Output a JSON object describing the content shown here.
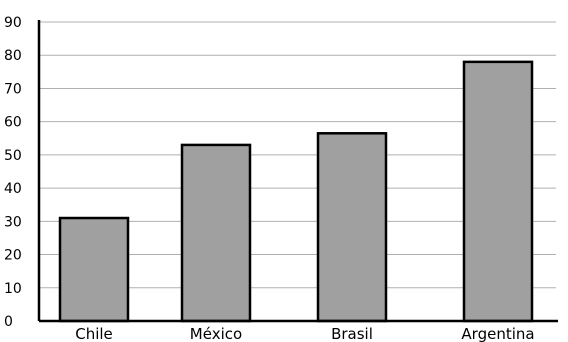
{
  "chart_data": {
    "type": "bar",
    "categories": [
      "Chile",
      "México",
      "Brasil",
      "Argentina"
    ],
    "values": [
      31,
      53,
      56.5,
      78
    ],
    "ylim": [
      0,
      90
    ],
    "yticks": [
      0,
      10,
      20,
      30,
      40,
      50,
      60,
      70,
      80,
      90
    ],
    "grid": true,
    "legend": "none",
    "title": "",
    "xlabel": "",
    "ylabel": "",
    "colors": {
      "bar_fill": "#a0a0a0",
      "bar_stroke": "#000000",
      "grid": "#b0b0b0",
      "axis": "#000000"
    }
  }
}
